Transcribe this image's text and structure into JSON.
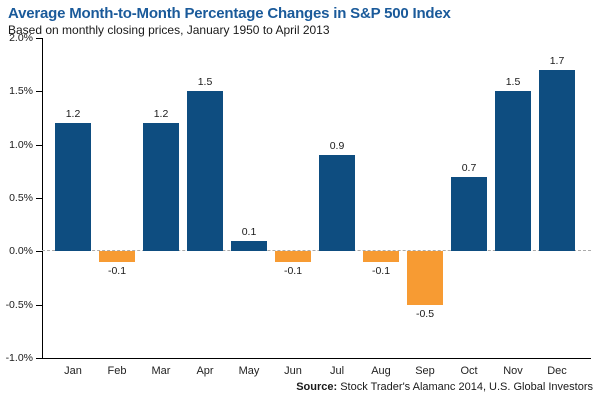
{
  "header": {
    "title": "Average Month-to-Month Percentage Changes in S&P 500 Index",
    "subtitle": "Based on monthly closing prices, January 1950 to April 2013"
  },
  "source": {
    "label": "Source:",
    "text": " Stock Trader's Alamanc 2014, U.S. Global Investors"
  },
  "colors": {
    "positive_bar": "#0E4D80",
    "negative_bar": "#F79B33",
    "title": "#1A5A9A",
    "axis": "#000000",
    "zero_line": "#ABABAB",
    "text": "#1a1a1a"
  },
  "chart_data": {
    "type": "bar",
    "title": "Average Month-to-Month Percentage Changes in S&P 500 Index",
    "subtitle": "Based on monthly closing prices, January 1950 to April 2013",
    "categories": [
      "Jan",
      "Feb",
      "Mar",
      "Apr",
      "May",
      "Jun",
      "Jul",
      "Aug",
      "Sep",
      "Oct",
      "Nov",
      "Dec"
    ],
    "values": [
      1.2,
      -0.1,
      1.2,
      1.5,
      0.1,
      -0.1,
      0.9,
      -0.1,
      -0.5,
      0.7,
      1.5,
      1.7
    ],
    "data_labels": [
      "1.2",
      "-0.1",
      "1.2",
      "1.5",
      "0.1",
      "-0.1",
      "0.9",
      "-0.1",
      "-0.5",
      "0.7",
      "1.5",
      "1.7"
    ],
    "xlabel": "",
    "ylabel": "",
    "ylim": [
      -1.0,
      2.0
    ],
    "yticks": [
      2.0,
      1.5,
      1.0,
      0.5,
      0.0,
      -0.5,
      -1.0
    ],
    "ytick_labels": [
      "2.0%",
      "1.5%",
      "1.0%",
      "0.5%",
      "0.0%",
      "-0.5%",
      "-1.0%"
    ],
    "grid": false,
    "legend": "none",
    "zero_line_style": "dashed",
    "color_rule": "positive bars dark blue, negative bars orange"
  }
}
